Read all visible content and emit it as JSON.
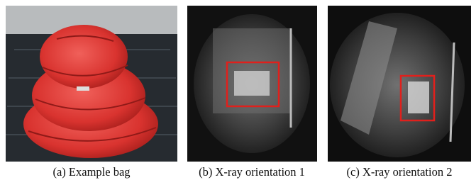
{
  "figure": {
    "subfigures": [
      {
        "caption": "(a) Example bag"
      },
      {
        "caption": "(b) X-ray orientation 1"
      },
      {
        "caption": "(c) X-ray orientation 2"
      }
    ]
  }
}
